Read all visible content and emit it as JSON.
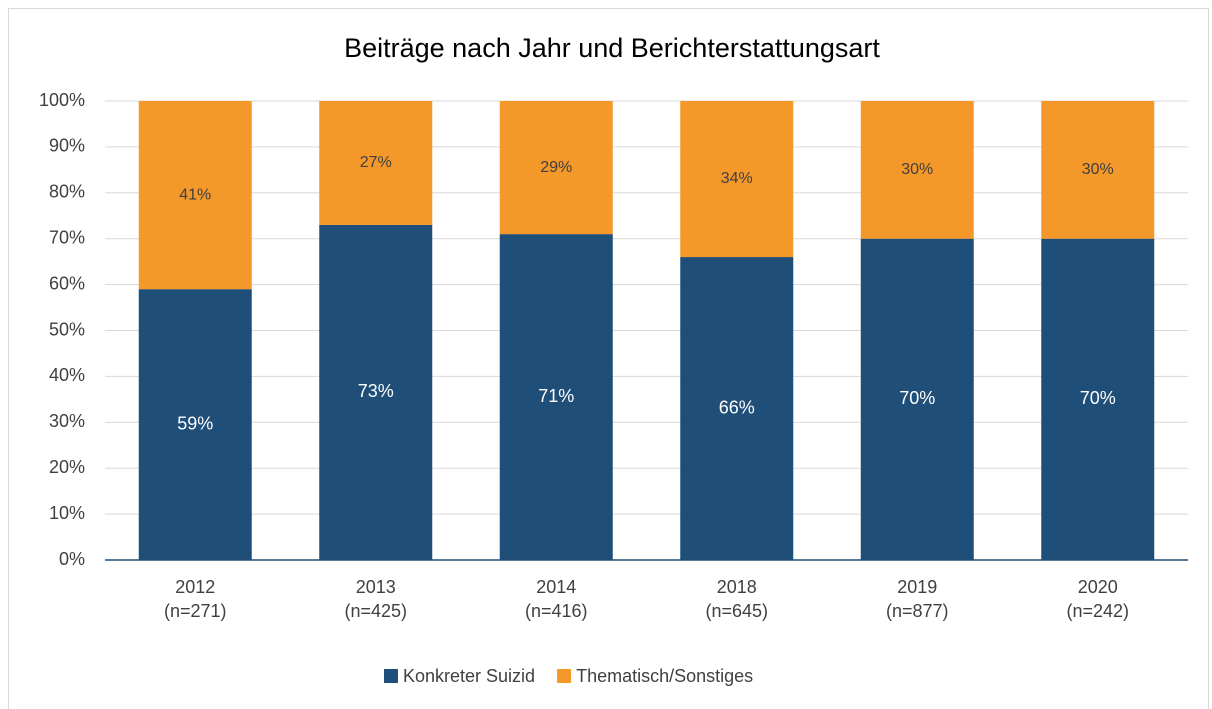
{
  "chart_data": {
    "type": "stacked_bar",
    "title": "Beiträge nach Jahr und Berichterstattungsart",
    "categories": [
      [
        "2012",
        "(n=271)"
      ],
      [
        "2013",
        "(n=425)"
      ],
      [
        "2014",
        "(n=416)"
      ],
      [
        "2018",
        "(n=645)"
      ],
      [
        "2019",
        "(n=877)"
      ],
      [
        "2020",
        "(n=242)"
      ]
    ],
    "series": [
      {
        "name": "Konkreter Suizid",
        "color": "#1f4e79",
        "values": [
          59,
          73,
          71,
          66,
          70,
          70
        ],
        "value_labels": [
          "59%",
          "73%",
          "71%",
          "66%",
          "70%",
          "70%"
        ]
      },
      {
        "name": "Thematisch/Sonstiges",
        "color": "#f4982a",
        "values": [
          41,
          27,
          29,
          34,
          30,
          30
        ],
        "value_labels": [
          "41%",
          "27%",
          "29%",
          "34%",
          "30%",
          "30%"
        ]
      }
    ],
    "ylim": [
      0,
      100
    ],
    "yticks": [
      {
        "value": 0,
        "label": "0%"
      },
      {
        "value": 10,
        "label": "10%"
      },
      {
        "value": 20,
        "label": "20%"
      },
      {
        "value": 30,
        "label": "30%"
      },
      {
        "value": 40,
        "label": "40%"
      },
      {
        "value": 50,
        "label": "50%"
      },
      {
        "value": 60,
        "label": "60%"
      },
      {
        "value": 70,
        "label": "70%"
      },
      {
        "value": 80,
        "label": "80%"
      },
      {
        "value": 90,
        "label": "90%"
      },
      {
        "value": 100,
        "label": "100%"
      }
    ],
    "grid": true,
    "legend": "bottom"
  }
}
